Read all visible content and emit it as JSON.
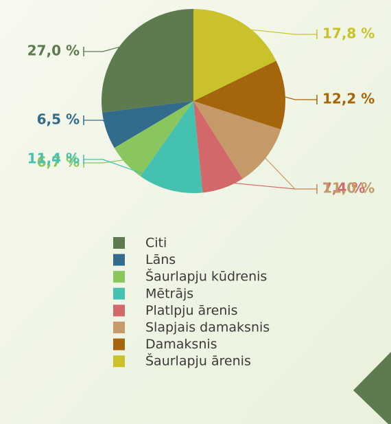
{
  "chart_data": {
    "type": "pie",
    "categories": [
      "Citi",
      "Lāns",
      "Šaurlapju kūdrenis",
      "Mētrājs",
      "Platlpju ārenis",
      "Slapjais damaksnis",
      "Damaksnis",
      "Šaurlapju ārenis"
    ],
    "values": [
      27.0,
      6.5,
      6.7,
      11.4,
      7.4,
      11.0,
      12.2,
      17.8
    ],
    "value_labels": [
      "27,0 %",
      "6,5 %",
      "6,7 %",
      "11,4 %",
      "7,4 %",
      "11,0 %",
      "12,2 %",
      "17,8 %"
    ],
    "colors": [
      "#5e7a4f",
      "#336b8c",
      "#8ac65e",
      "#45c1b0",
      "#d2686a",
      "#c49a6a",
      "#a5650c",
      "#c9c22a"
    ],
    "legend": true
  }
}
